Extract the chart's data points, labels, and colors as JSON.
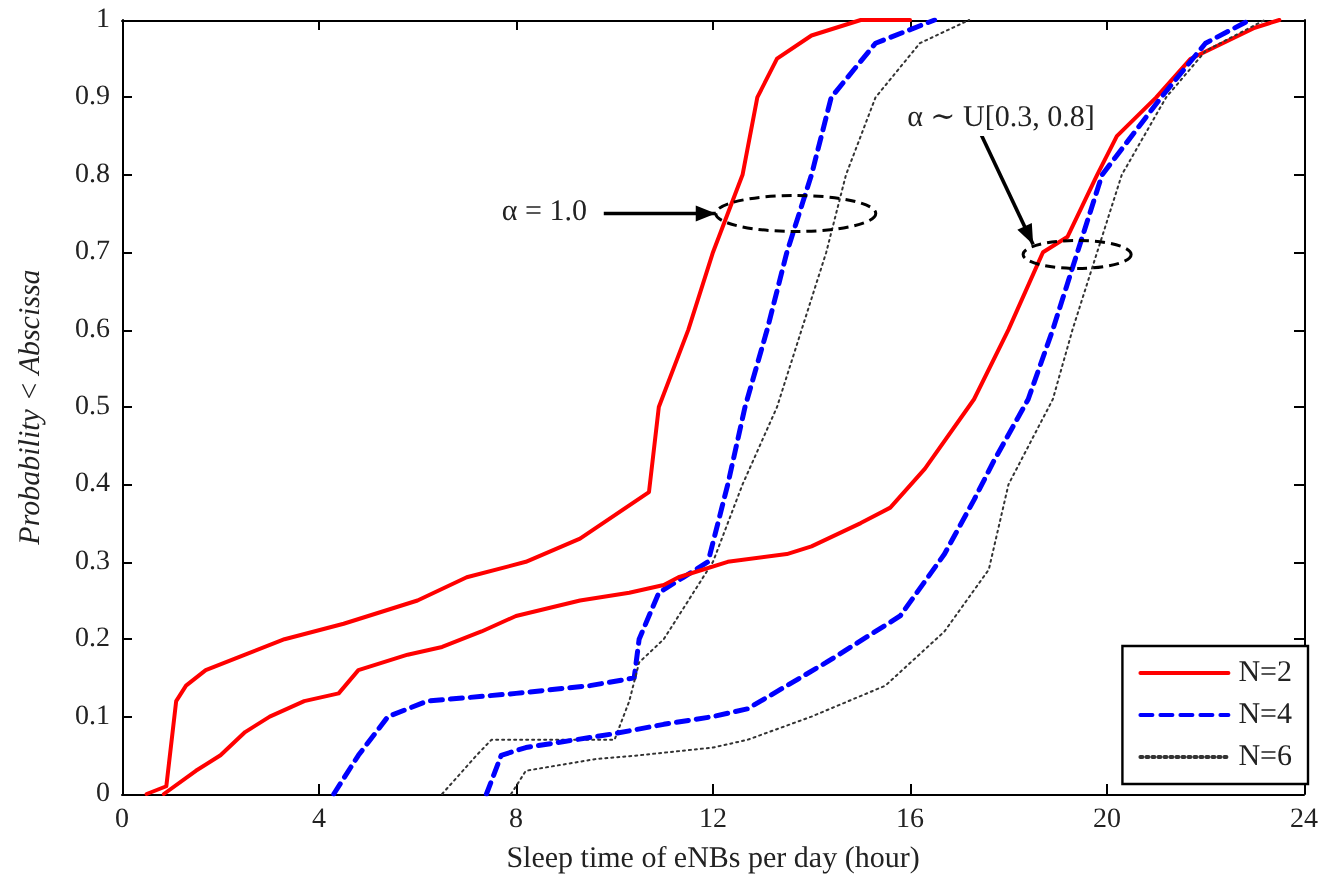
{
  "chart_data": {
    "type": "line",
    "xlabel": "Sleep time of eNBs per day (hour)",
    "ylabel": "Probability < Abscissa",
    "xlim": [
      0,
      24
    ],
    "xticks": [
      0,
      4,
      8,
      12,
      16,
      20,
      24
    ],
    "ylim": [
      0,
      1
    ],
    "yticks": [
      0,
      0.1,
      0.2,
      0.3,
      0.4,
      0.5,
      0.6,
      0.7,
      0.8,
      0.9,
      1
    ],
    "grid": false,
    "legend": "bottom right",
    "marker": "none",
    "series": [
      {
        "name": "N=2",
        "color": "#ff0000",
        "line_style": "solid",
        "x": [
          0.5,
          0.9,
          1.1,
          1.3,
          1.7,
          2.5,
          3.3,
          4.5,
          6,
          7,
          8.2,
          9.3,
          10,
          10.7,
          10.9,
          11.5,
          12,
          12.3,
          12.6,
          12.9,
          13.3,
          14,
          15,
          16
        ],
        "values": [
          0,
          0.01,
          0.12,
          0.14,
          0.16,
          0.18,
          0.2,
          0.22,
          0.25,
          0.28,
          0.3,
          0.33,
          0.36,
          0.39,
          0.5,
          0.6,
          0.7,
          0.75,
          0.8,
          0.9,
          0.95,
          0.98,
          1,
          1
        ]
      },
      {
        "name": "N=4",
        "color": "#0000ff",
        "line_style": "dashed",
        "x": [
          4.3,
          4.8,
          5.4,
          6.2,
          8,
          9.5,
          10.4,
          10.5,
          10.9,
          11.4,
          11.9,
          12.3,
          12.65,
          13.1,
          13.5,
          14,
          14.4,
          15.3,
          16.5
        ],
        "values": [
          0,
          0.05,
          0.1,
          0.12,
          0.13,
          0.14,
          0.15,
          0.2,
          0.26,
          0.28,
          0.3,
          0.4,
          0.5,
          0.6,
          0.7,
          0.8,
          0.9,
          0.97,
          1
        ]
      },
      {
        "name": "N=6",
        "color": "#333333",
        "line_style": "dotted",
        "x": [
          6.5,
          7.2,
          7.5,
          10,
          10.3,
          10.5,
          11,
          11.5,
          12,
          12.6,
          13.3,
          13.8,
          14.3,
          14.7,
          15.3,
          16.2,
          17.2
        ],
        "values": [
          0,
          0.05,
          0.07,
          0.07,
          0.12,
          0.17,
          0.2,
          0.25,
          0.3,
          0.4,
          0.5,
          0.6,
          0.7,
          0.8,
          0.9,
          0.97,
          1
        ]
      },
      {
        "color": "#ff0000",
        "line_style": "solid",
        "x": [
          0.85,
          1.5,
          2,
          2.5,
          3,
          3.7,
          4.4,
          4.8,
          5.8,
          6.5,
          7.3,
          8,
          9.3,
          10.3,
          11,
          11.3,
          12.3,
          13.5,
          14,
          15,
          15.6,
          16.3,
          17.3,
          18,
          18.7,
          19.2,
          19.8,
          20.2,
          21,
          21.7,
          23,
          23.5
        ],
        "values": [
          0,
          0.03,
          0.05,
          0.08,
          0.1,
          0.12,
          0.13,
          0.16,
          0.18,
          0.19,
          0.21,
          0.23,
          0.25,
          0.26,
          0.27,
          0.28,
          0.3,
          0.31,
          0.32,
          0.35,
          0.37,
          0.42,
          0.51,
          0.6,
          0.7,
          0.72,
          0.8,
          0.85,
          0.9,
          0.95,
          0.99,
          1
        ]
      },
      {
        "color": "#0000ff",
        "line_style": "dashed",
        "x": [
          7.4,
          7.7,
          8.2,
          10,
          11,
          12,
          12.7,
          13.5,
          14.3,
          15.8,
          16.7,
          17.3,
          17.7,
          18.4,
          18.9,
          19.4,
          19.9,
          21.1,
          22,
          22.9
        ],
        "values": [
          0,
          0.05,
          0.06,
          0.078,
          0.09,
          0.1,
          0.11,
          0.14,
          0.17,
          0.23,
          0.31,
          0.38,
          0.43,
          0.51,
          0.6,
          0.7,
          0.8,
          0.9,
          0.97,
          1
        ]
      },
      {
        "color": "#333333",
        "line_style": "dotted",
        "x": [
          7.9,
          8.2,
          9.6,
          10.5,
          12,
          12.7,
          14,
          15.5,
          16.7,
          17.6,
          18,
          18.9,
          19.3,
          19.8,
          20.3,
          21.2,
          22,
          23.2
        ],
        "values": [
          0,
          0.03,
          0.045,
          0.05,
          0.06,
          0.07,
          0.1,
          0.14,
          0.21,
          0.29,
          0.4,
          0.51,
          0.6,
          0.7,
          0.8,
          0.9,
          0.96,
          1
        ]
      }
    ],
    "annotations": [
      {
        "text": "α = 1.0",
        "x": 12.3,
        "y": 0.75
      },
      {
        "text": "α ∼ U[0.3, 0.8]",
        "x": 18.5,
        "y": 0.71
      }
    ]
  }
}
